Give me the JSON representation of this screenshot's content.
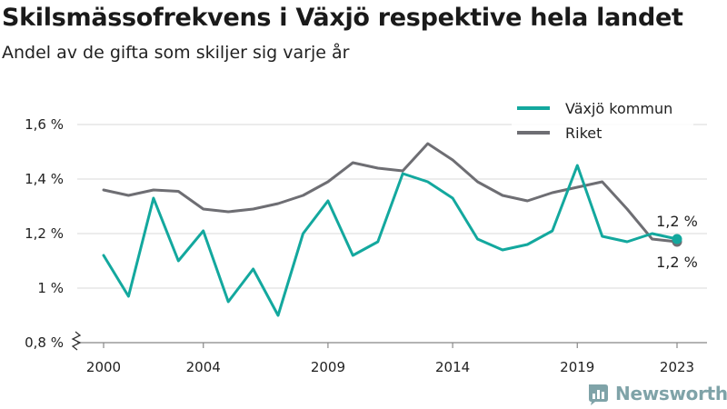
{
  "title": "Skilsmässofrekvens i Växjö respektive hela landet",
  "subtitle": "Andel av de gifta som skiljer sig varje år",
  "brand": "Newsworthy",
  "colors": {
    "vaxjo": "#13a89e",
    "riket": "#6e6e73",
    "grid": "#d9d9d9",
    "logo": "#7fa3a8"
  },
  "chart_data": {
    "type": "line",
    "x": [
      2000,
      2001,
      2002,
      2003,
      2004,
      2005,
      2006,
      2007,
      2008,
      2009,
      2010,
      2011,
      2012,
      2013,
      2014,
      2015,
      2016,
      2017,
      2018,
      2019,
      2020,
      2021,
      2022,
      2023
    ],
    "x_ticks": [
      2000,
      2004,
      2009,
      2014,
      2019,
      2023
    ],
    "y_ticks": [
      {
        "value": 0.8,
        "label": "0,8 %"
      },
      {
        "value": 1.0,
        "label": "1 %"
      },
      {
        "value": 1.2,
        "label": "1,2 %"
      },
      {
        "value": 1.4,
        "label": "1,4 %"
      },
      {
        "value": 1.6,
        "label": "1,6 %"
      }
    ],
    "ylim": [
      0.8,
      1.6
    ],
    "y_axis_break": true,
    "grid": "horizontal",
    "legend_position": "top-right",
    "series": [
      {
        "name": "Växjö kommun",
        "color": "#13a89e",
        "values": [
          1.12,
          0.97,
          1.33,
          1.1,
          1.21,
          0.95,
          1.07,
          0.9,
          1.2,
          1.32,
          1.12,
          1.17,
          1.42,
          1.39,
          1.33,
          1.18,
          1.14,
          1.16,
          1.21,
          1.45,
          1.19,
          1.17,
          1.2,
          1.18
        ],
        "end_label": "1,2 %"
      },
      {
        "name": "Riket",
        "color": "#6e6e73",
        "values": [
          1.36,
          1.34,
          1.36,
          1.355,
          1.29,
          1.28,
          1.29,
          1.31,
          1.34,
          1.39,
          1.46,
          1.44,
          1.43,
          1.53,
          1.47,
          1.39,
          1.34,
          1.32,
          1.35,
          1.37,
          1.39,
          1.29,
          1.18,
          1.17
        ],
        "end_label": "1,2 %"
      }
    ]
  }
}
